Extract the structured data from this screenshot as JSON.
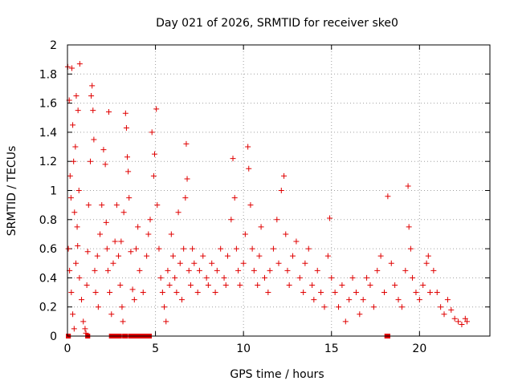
{
  "chart_data": {
    "type": "scatter",
    "title": "Day 021 of 2026, SRMTID for receiver ske0",
    "xlabel": "GPS time / hours",
    "ylabel": "SRMTID / TECUs",
    "xlim": [
      0,
      24
    ],
    "ylim": [
      0,
      2
    ],
    "xticks": [
      0,
      5,
      10,
      15,
      20
    ],
    "yticks": [
      0,
      0.2,
      0.4,
      0.6,
      0.8,
      1,
      1.2,
      1.4,
      1.6,
      1.8,
      2
    ],
    "xtick_labels": [
      "0",
      "5",
      "10",
      "15",
      "20"
    ],
    "ytick_labels": [
      "0",
      "0.2",
      "0.4",
      "0.6",
      "0.8",
      "1",
      "1.2",
      "1.4",
      "1.6",
      "1.8",
      "2"
    ],
    "grid": true,
    "marker": "plus",
    "color": "#e00000",
    "series": [
      {
        "name": "SRMTID",
        "points": [
          [
            0.02,
            1.85
          ],
          [
            0.1,
            1.62
          ],
          [
            0.25,
            1.84
          ],
          [
            0.3,
            1.45
          ],
          [
            0.45,
            1.3
          ],
          [
            0.5,
            1.65
          ],
          [
            0.6,
            1.55
          ],
          [
            0.7,
            1.87
          ],
          [
            0.15,
            1.1
          ],
          [
            0.2,
            0.95
          ],
          [
            0.35,
            1.2
          ],
          [
            0.4,
            0.85
          ],
          [
            0.55,
            0.75
          ],
          [
            0.65,
            1.0
          ],
          [
            0.05,
            0.6
          ],
          [
            0.12,
            0.45
          ],
          [
            0.22,
            0.3
          ],
          [
            0.3,
            0.15
          ],
          [
            0.38,
            0.05
          ],
          [
            0.48,
            0.5
          ],
          [
            0.58,
            0.62
          ],
          [
            0.68,
            0.4
          ],
          [
            0.8,
            0.25
          ],
          [
            0.9,
            0.1
          ],
          [
            1.0,
            0.05
          ],
          [
            1.05,
            0.02
          ],
          [
            1.1,
            0.35
          ],
          [
            1.15,
            0.58
          ],
          [
            1.2,
            0.9
          ],
          [
            1.3,
            1.2
          ],
          [
            1.35,
            1.65
          ],
          [
            1.4,
            1.72
          ],
          [
            1.45,
            1.55
          ],
          [
            1.5,
            1.35
          ],
          [
            1.55,
            0.45
          ],
          [
            1.6,
            0.3
          ],
          [
            1.7,
            0.55
          ],
          [
            1.75,
            0.2
          ],
          [
            1.85,
            0.7
          ],
          [
            1.95,
            0.9
          ],
          [
            2.05,
            1.28
          ],
          [
            2.15,
            1.18
          ],
          [
            2.2,
            0.78
          ],
          [
            2.25,
            0.6
          ],
          [
            2.3,
            0.45
          ],
          [
            2.35,
            1.54
          ],
          [
            2.4,
            0.3
          ],
          [
            2.5,
            0.15
          ],
          [
            2.6,
            0.5
          ],
          [
            2.7,
            0.65
          ],
          [
            2.8,
            0.9
          ],
          [
            2.9,
            0.55
          ],
          [
            3.0,
            0.35
          ],
          [
            3.05,
            0.65
          ],
          [
            3.1,
            0.2
          ],
          [
            3.15,
            0.1
          ],
          [
            3.2,
            0.85
          ],
          [
            3.3,
            1.53
          ],
          [
            3.35,
            1.43
          ],
          [
            3.4,
            1.23
          ],
          [
            3.45,
            1.13
          ],
          [
            3.5,
            0.95
          ],
          [
            3.6,
            0.58
          ],
          [
            3.7,
            0.32
          ],
          [
            3.8,
            0.25
          ],
          [
            3.9,
            0.6
          ],
          [
            4.0,
            0.75
          ],
          [
            4.1,
            0.45
          ],
          [
            4.3,
            0.3
          ],
          [
            4.5,
            0.55
          ],
          [
            4.6,
            0.7
          ],
          [
            4.7,
            0.8
          ],
          [
            4.8,
            1.4
          ],
          [
            4.9,
            1.1
          ],
          [
            4.95,
            1.25
          ],
          [
            5.05,
            1.56
          ],
          [
            5.1,
            0.9
          ],
          [
            5.2,
            0.6
          ],
          [
            5.3,
            0.4
          ],
          [
            5.4,
            0.3
          ],
          [
            5.5,
            0.2
          ],
          [
            5.6,
            0.1
          ],
          [
            5.7,
            0.45
          ],
          [
            5.8,
            0.35
          ],
          [
            5.9,
            0.7
          ],
          [
            6.0,
            0.55
          ],
          [
            6.1,
            0.4
          ],
          [
            6.2,
            0.3
          ],
          [
            6.3,
            0.85
          ],
          [
            6.4,
            0.5
          ],
          [
            6.5,
            0.25
          ],
          [
            6.6,
            0.6
          ],
          [
            6.7,
            0.95
          ],
          [
            6.75,
            1.32
          ],
          [
            6.8,
            1.08
          ],
          [
            6.9,
            0.45
          ],
          [
            7.0,
            0.35
          ],
          [
            7.1,
            0.6
          ],
          [
            7.2,
            0.5
          ],
          [
            7.4,
            0.3
          ],
          [
            7.5,
            0.45
          ],
          [
            7.7,
            0.55
          ],
          [
            7.9,
            0.4
          ],
          [
            8.0,
            0.35
          ],
          [
            8.2,
            0.5
          ],
          [
            8.4,
            0.3
          ],
          [
            8.5,
            0.45
          ],
          [
            8.7,
            0.6
          ],
          [
            8.9,
            0.4
          ],
          [
            9.0,
            0.35
          ],
          [
            9.1,
            0.55
          ],
          [
            9.3,
            0.8
          ],
          [
            9.4,
            1.22
          ],
          [
            9.5,
            0.95
          ],
          [
            9.6,
            0.6
          ],
          [
            9.7,
            0.45
          ],
          [
            9.8,
            0.35
          ],
          [
            10.0,
            0.5
          ],
          [
            10.1,
            0.7
          ],
          [
            10.25,
            1.3
          ],
          [
            10.3,
            1.15
          ],
          [
            10.4,
            0.9
          ],
          [
            10.5,
            0.6
          ],
          [
            10.6,
            0.45
          ],
          [
            10.8,
            0.35
          ],
          [
            10.9,
            0.55
          ],
          [
            11.0,
            0.75
          ],
          [
            11.2,
            0.4
          ],
          [
            11.4,
            0.3
          ],
          [
            11.5,
            0.45
          ],
          [
            11.7,
            0.6
          ],
          [
            11.9,
            0.8
          ],
          [
            12.0,
            0.5
          ],
          [
            12.15,
            1.0
          ],
          [
            12.3,
            1.1
          ],
          [
            12.4,
            0.7
          ],
          [
            12.5,
            0.45
          ],
          [
            12.6,
            0.35
          ],
          [
            12.8,
            0.55
          ],
          [
            13.0,
            0.65
          ],
          [
            13.2,
            0.4
          ],
          [
            13.4,
            0.3
          ],
          [
            13.5,
            0.5
          ],
          [
            13.7,
            0.6
          ],
          [
            13.9,
            0.35
          ],
          [
            14.0,
            0.25
          ],
          [
            14.2,
            0.45
          ],
          [
            14.4,
            0.3
          ],
          [
            14.6,
            0.2
          ],
          [
            14.8,
            0.55
          ],
          [
            14.9,
            0.81
          ],
          [
            15.0,
            0.4
          ],
          [
            15.2,
            0.3
          ],
          [
            15.4,
            0.2
          ],
          [
            15.6,
            0.35
          ],
          [
            15.8,
            0.1
          ],
          [
            16.0,
            0.25
          ],
          [
            16.2,
            0.4
          ],
          [
            16.4,
            0.3
          ],
          [
            16.6,
            0.15
          ],
          [
            16.8,
            0.25
          ],
          [
            17.0,
            0.4
          ],
          [
            17.2,
            0.35
          ],
          [
            17.4,
            0.2
          ],
          [
            17.6,
            0.45
          ],
          [
            17.8,
            0.55
          ],
          [
            18.0,
            0.3
          ],
          [
            18.2,
            0.96
          ],
          [
            18.4,
            0.5
          ],
          [
            18.6,
            0.35
          ],
          [
            18.8,
            0.25
          ],
          [
            19.0,
            0.2
          ],
          [
            19.2,
            0.45
          ],
          [
            19.35,
            1.03
          ],
          [
            19.4,
            0.75
          ],
          [
            19.5,
            0.6
          ],
          [
            19.6,
            0.4
          ],
          [
            19.8,
            0.3
          ],
          [
            20.0,
            0.25
          ],
          [
            20.2,
            0.35
          ],
          [
            20.4,
            0.5
          ],
          [
            20.5,
            0.55
          ],
          [
            20.6,
            0.3
          ],
          [
            20.8,
            0.45
          ],
          [
            21.0,
            0.3
          ],
          [
            21.2,
            0.2
          ],
          [
            21.4,
            0.15
          ],
          [
            21.6,
            0.25
          ],
          [
            21.8,
            0.18
          ],
          [
            22.0,
            0.12
          ],
          [
            22.2,
            0.1
          ],
          [
            22.4,
            0.08
          ],
          [
            22.6,
            0.12
          ],
          [
            22.7,
            0.1
          ]
        ]
      }
    ],
    "zero_segments": [
      [
        0.0,
        0.1
      ],
      [
        1.1,
        1.2
      ],
      [
        2.45,
        3.0
      ],
      [
        3.2,
        3.35
      ],
      [
        3.55,
        4.7
      ],
      [
        18.1,
        18.25
      ]
    ]
  }
}
